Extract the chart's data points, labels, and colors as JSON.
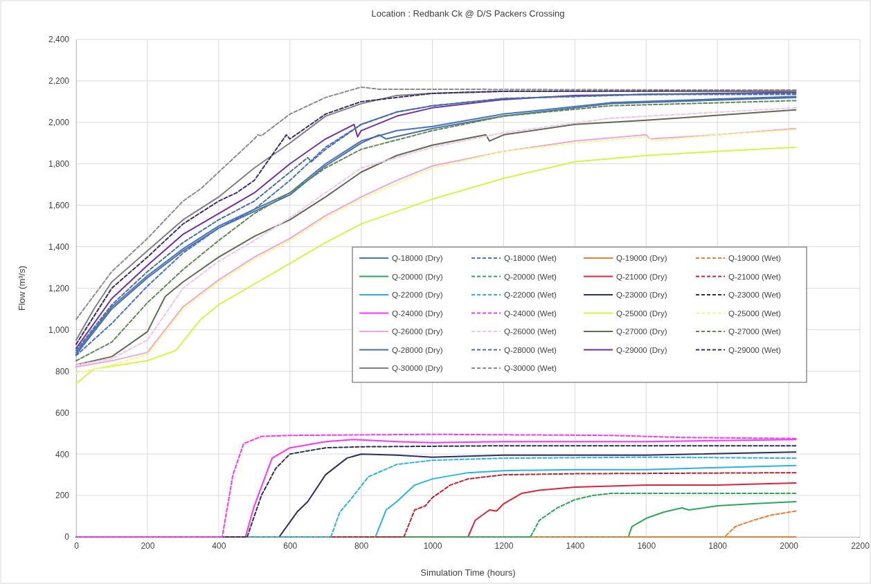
{
  "chart_data": {
    "type": "line",
    "title": "Location : Redbank Ck @ D/S Packers Crossing",
    "xlabel": "Simulation Time (hours)",
    "ylabel": "Flow (m³/s)",
    "xlim": [
      0,
      2200
    ],
    "xticks": [
      0,
      200,
      400,
      600,
      800,
      1000,
      1200,
      1400,
      1600,
      1800,
      2000,
      2200
    ],
    "ylim": [
      0,
      2400
    ],
    "yticks": [
      0,
      200,
      400,
      600,
      800,
      {
        "value": 1000,
        "label": "1,000"
      },
      {
        "value": 1200,
        "label": "1,200"
      },
      {
        "value": 1400,
        "label": "1,400"
      },
      {
        "value": 1600,
        "label": "1,600"
      },
      {
        "value": 1800,
        "label": "1,800"
      },
      {
        "value": 2000,
        "label": "2,000"
      },
      {
        "value": 2200,
        "label": "2,200"
      },
      {
        "value": 2400,
        "label": "2,400"
      }
    ],
    "grid": true,
    "legend": "center right",
    "series": [
      {
        "name": "Q-18000 (Dry)",
        "color": "#4472c4",
        "line_style": "solid",
        "x": [
          0,
          100,
          200,
          300,
          400,
          500,
          600,
          700,
          800,
          900,
          1000,
          1200,
          1500,
          2020
        ],
        "values": [
          890,
          1110,
          1260,
          1390,
          1500,
          1580,
          1660,
          1800,
          1910,
          1960,
          1980,
          2040,
          2095,
          2125
        ]
      },
      {
        "name": "Q-18000 (Wet)",
        "color": "#4472c4",
        "line_style": "dashed",
        "x": [
          0,
          100,
          200,
          300,
          400,
          500,
          600,
          700,
          800,
          900,
          1000,
          1200,
          1600,
          2020
        ],
        "values": [
          875,
          1030,
          1210,
          1370,
          1490,
          1580,
          1720,
          1880,
          1990,
          2050,
          2080,
          2115,
          2135,
          2135
        ]
      },
      {
        "name": "Q-19000 (Dry)",
        "color": "#ed7d31",
        "line_style": "solid",
        "x": [
          0,
          2020
        ],
        "values": [
          0,
          0
        ]
      },
      {
        "name": "Q-19000 (Wet)",
        "color": "#ed7d31",
        "line_style": "dashed",
        "x": [
          0,
          1820,
          1850,
          1900,
          1950,
          2020
        ],
        "values": [
          0,
          0,
          50,
          80,
          105,
          125
        ]
      },
      {
        "name": "Q-20000 (Dry)",
        "color": "#27a85a",
        "line_style": "solid",
        "x": [
          0,
          1550,
          1560,
          1600,
          1650,
          1700,
          1720,
          1800,
          1900,
          2020
        ],
        "values": [
          0,
          0,
          50,
          90,
          120,
          140,
          130,
          150,
          160,
          170
        ]
      },
      {
        "name": "Q-20000 (Wet)",
        "color": "#27a85a",
        "line_style": "dashed",
        "x": [
          0,
          1275,
          1300,
          1350,
          1400,
          1450,
          1500,
          1700,
          2020
        ],
        "values": [
          0,
          0,
          80,
          140,
          180,
          200,
          210,
          210,
          210
        ]
      },
      {
        "name": "Q-21000 (Dry)",
        "color": "#e0203c",
        "line_style": "solid",
        "x": [
          0,
          1100,
          1120,
          1160,
          1180,
          1200,
          1250,
          1300,
          1400,
          1600,
          1800,
          2020
        ],
        "values": [
          0,
          0,
          80,
          130,
          125,
          160,
          210,
          225,
          240,
          250,
          250,
          260
        ]
      },
      {
        "name": "Q-21000 (Wet)",
        "color": "#c0202c",
        "line_style": "dashed",
        "x": [
          0,
          920,
          950,
          980,
          1000,
          1050,
          1100,
          1200,
          1400,
          2020
        ],
        "values": [
          0,
          0,
          130,
          150,
          190,
          250,
          280,
          300,
          305,
          310
        ]
      },
      {
        "name": "Q-22000 (Dry)",
        "color": "#25b4e8",
        "line_style": "solid",
        "x": [
          0,
          840,
          870,
          900,
          950,
          1000,
          1100,
          1200,
          1400,
          1600,
          1800,
          2020
        ],
        "values": [
          0,
          0,
          130,
          170,
          250,
          280,
          310,
          320,
          325,
          325,
          335,
          345
        ]
      },
      {
        "name": "Q-22000 (Wet)",
        "color": "#25b4e8",
        "line_style": "dashed",
        "x": [
          0,
          715,
          740,
          770,
          820,
          900,
          1000,
          1200,
          1600,
          2020
        ],
        "values": [
          0,
          0,
          120,
          180,
          290,
          350,
          370,
          380,
          385,
          380
        ]
      },
      {
        "name": "Q-23000 (Dry)",
        "color": "#2b2f5e",
        "line_style": "solid",
        "x": [
          0,
          570,
          620,
          650,
          700,
          760,
          800,
          900,
          1000,
          1200,
          1600,
          2020
        ],
        "values": [
          0,
          0,
          120,
          170,
          300,
          380,
          400,
          395,
          385,
          395,
          395,
          410
        ]
      },
      {
        "name": "Q-23000 (Wet)",
        "color": "#2b2f5e",
        "line_style": "dashed",
        "x": [
          0,
          480,
          520,
          560,
          600,
          700,
          800,
          1200,
          2020
        ],
        "values": [
          0,
          0,
          200,
          330,
          400,
          430,
          435,
          440,
          440
        ]
      },
      {
        "name": "Q-24000 (Dry)",
        "color": "#ff33ff",
        "line_style": "solid",
        "x": [
          0,
          475,
          500,
          550,
          600,
          700,
          780,
          900,
          1000,
          1200,
          1600,
          2020
        ],
        "values": [
          0,
          0,
          150,
          380,
          430,
          460,
          470,
          460,
          455,
          460,
          460,
          470
        ]
      },
      {
        "name": "Q-24000 (Wet)",
        "color": "#ff33ff",
        "line_style": "dashed",
        "x": [
          0,
          410,
          440,
          470,
          520,
          600,
          1000,
          1500,
          1700,
          2020
        ],
        "values": [
          0,
          0,
          300,
          450,
          485,
          490,
          495,
          490,
          480,
          475
        ]
      },
      {
        "name": "Q-25000 (Dry)",
        "color": "#d4f542",
        "line_style": "solid",
        "x": [
          0,
          50,
          200,
          280,
          350,
          400,
          500,
          600,
          700,
          800,
          1000,
          1200,
          1400,
          1600,
          1800,
          2020
        ],
        "values": [
          740,
          810,
          850,
          900,
          1050,
          1120,
          1220,
          1320,
          1420,
          1510,
          1630,
          1730,
          1810,
          1840,
          1860,
          1880
        ]
      },
      {
        "name": "Q-25000 (Wet)",
        "color": "#f0fa90",
        "line_style": "dashed",
        "x": [
          0,
          100,
          200,
          300,
          400,
          500,
          600,
          700,
          800,
          1000,
          1200,
          1400,
          1600,
          1620,
          1800,
          2020
        ],
        "values": [
          790,
          830,
          880,
          1100,
          1230,
          1340,
          1430,
          1540,
          1630,
          1780,
          1860,
          1900,
          1930,
          1910,
          1940,
          1965
        ]
      },
      {
        "name": "Q-26000 (Dry)",
        "color": "#eea4dc",
        "line_style": "solid",
        "x": [
          0,
          100,
          200,
          300,
          400,
          500,
          600,
          700,
          800,
          900,
          1000,
          1200,
          1400,
          1600,
          1610,
          1800,
          2020
        ],
        "values": [
          820,
          850,
          890,
          1110,
          1240,
          1350,
          1440,
          1550,
          1640,
          1720,
          1790,
          1860,
          1910,
          1940,
          1920,
          1940,
          1970
        ]
      },
      {
        "name": "Q-26000 (Wet)",
        "color": "#f3c4ea",
        "line_style": "dashed",
        "x": [
          0,
          100,
          200,
          300,
          400,
          500,
          600,
          700,
          800,
          1000,
          1200,
          1500,
          2020
        ],
        "values": [
          830,
          860,
          950,
          1200,
          1330,
          1430,
          1540,
          1660,
          1780,
          1880,
          1950,
          2020,
          2070
        ]
      },
      {
        "name": "Q-27000 (Dry)",
        "color": "#5f6b50",
        "line_style": "solid",
        "x": [
          0,
          100,
          200,
          250,
          300,
          400,
          500,
          600,
          700,
          800,
          900,
          1000,
          1150,
          1160,
          1200,
          1400,
          1600,
          2020
        ],
        "values": [
          830,
          870,
          990,
          1160,
          1230,
          1350,
          1450,
          1530,
          1640,
          1760,
          1840,
          1890,
          1940,
          1910,
          1940,
          1990,
          2010,
          2060
        ]
      },
      {
        "name": "Q-27000 (Wet)",
        "color": "#5c8a4e",
        "line_style": "dashed",
        "x": [
          0,
          100,
          200,
          300,
          400,
          500,
          600,
          700,
          800,
          1000,
          1200,
          1500,
          2020
        ],
        "values": [
          850,
          940,
          1130,
          1290,
          1430,
          1560,
          1660,
          1780,
          1870,
          1960,
          2030,
          2080,
          2105
        ]
      },
      {
        "name": "Q-28000 (Dry)",
        "color": "#4a6f9e",
        "line_style": "solid",
        "x": [
          0,
          100,
          200,
          300,
          400,
          500,
          600,
          700,
          800,
          850,
          870,
          1000,
          1200,
          1500,
          2020
        ],
        "values": [
          880,
          1100,
          1250,
          1380,
          1490,
          1570,
          1650,
          1790,
          1900,
          1940,
          1920,
          1970,
          2030,
          2090,
          2120
        ]
      },
      {
        "name": "Q-28000 (Wet)",
        "color": "#4a6f9e",
        "line_style": "dashed",
        "x": [
          0,
          100,
          200,
          300,
          400,
          500,
          600,
          650,
          660,
          700,
          800,
          900,
          1000,
          1200,
          1600,
          2020
        ],
        "values": [
          900,
          1120,
          1280,
          1420,
          1530,
          1620,
          1760,
          1830,
          1810,
          1870,
          1990,
          2050,
          2080,
          2115,
          2135,
          2140
        ]
      },
      {
        "name": "Q-29000 (Dry)",
        "color": "#7030a0",
        "line_style": "solid",
        "x": [
          0,
          100,
          200,
          300,
          400,
          500,
          600,
          700,
          780,
          790,
          800,
          900,
          1000,
          1200,
          1400,
          2020
        ],
        "values": [
          910,
          1150,
          1310,
          1460,
          1560,
          1660,
          1800,
          1920,
          1990,
          1930,
          1960,
          2030,
          2070,
          2110,
          2130,
          2145
        ]
      },
      {
        "name": "Q-29000 (Wet)",
        "color": "#3a2a70",
        "line_style": "dashed",
        "x": [
          0,
          100,
          200,
          300,
          400,
          450,
          500,
          590,
          600,
          700,
          800,
          1000,
          1200,
          2020
        ],
        "values": [
          930,
          1200,
          1350,
          1510,
          1620,
          1660,
          1720,
          1940,
          1920,
          2040,
          2100,
          2140,
          2150,
          2155
        ]
      },
      {
        "name": "Q-30000 (Dry)",
        "color": "#7f7f7f",
        "line_style": "solid",
        "x": [
          0,
          50,
          100,
          200,
          300,
          400,
          500,
          600,
          700,
          800,
          900,
          1000,
          1200,
          2020
        ],
        "values": [
          950,
          1100,
          1230,
          1380,
          1530,
          1640,
          1780,
          1900,
          2030,
          2090,
          2130,
          2140,
          2150,
          2150
        ]
      },
      {
        "name": "Q-30000 (Wet)",
        "color": "#8c8c8c",
        "line_style": "dashed",
        "x": [
          0,
          100,
          200,
          300,
          350,
          400,
          500,
          510,
          520,
          600,
          700,
          800,
          850,
          1000,
          2020
        ],
        "values": [
          1050,
          1280,
          1440,
          1620,
          1680,
          1760,
          1920,
          1940,
          1935,
          2040,
          2120,
          2170,
          2160,
          2160,
          2155
        ]
      }
    ]
  }
}
